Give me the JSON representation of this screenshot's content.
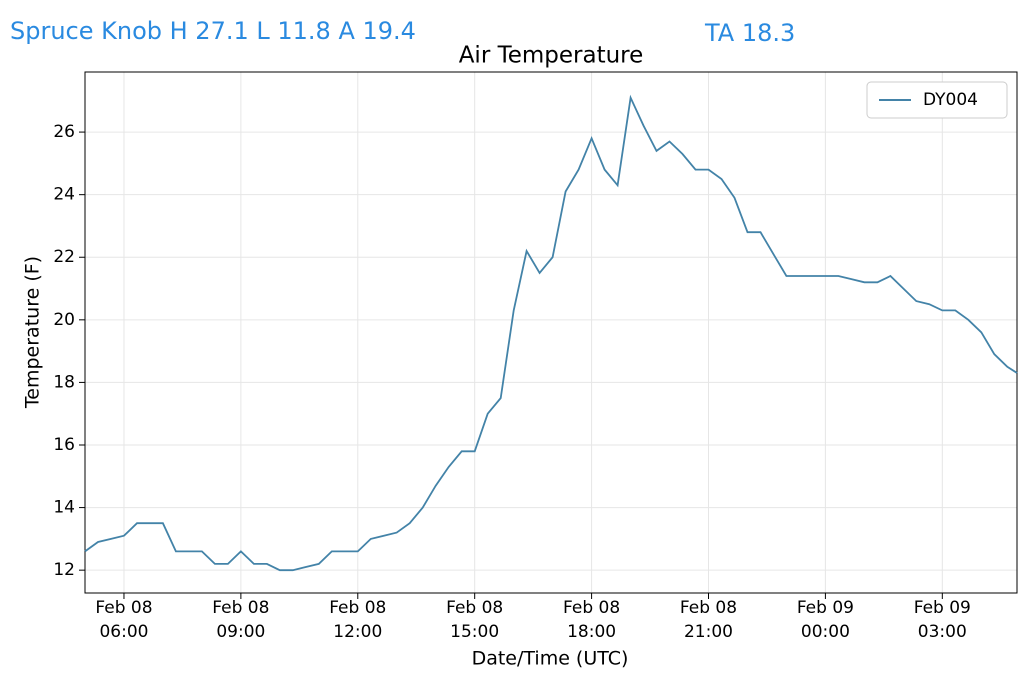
{
  "header": {
    "station": "Spruce Knob H 27.1 L 11.8 A 19.4",
    "ta": "TA 18.3"
  },
  "chart_data": {
    "type": "line",
    "title": "Air Temperature",
    "x_label": "Date/Time (UTC)",
    "y_label": "Temperature (F)",
    "x": [
      "Feb 08 05:00",
      "Feb 08 05:20",
      "Feb 08 05:40",
      "Feb 08 06:00",
      "Feb 08 06:20",
      "Feb 08 06:40",
      "Feb 08 07:00",
      "Feb 08 07:20",
      "Feb 08 07:40",
      "Feb 08 08:00",
      "Feb 08 08:20",
      "Feb 08 08:40",
      "Feb 08 09:00",
      "Feb 08 09:20",
      "Feb 08 09:40",
      "Feb 08 10:00",
      "Feb 08 10:20",
      "Feb 08 10:40",
      "Feb 08 11:00",
      "Feb 08 11:20",
      "Feb 08 11:40",
      "Feb 08 12:00",
      "Feb 08 12:20",
      "Feb 08 12:40",
      "Feb 08 13:00",
      "Feb 08 13:20",
      "Feb 08 13:40",
      "Feb 08 14:00",
      "Feb 08 14:20",
      "Feb 08 14:40",
      "Feb 08 15:00",
      "Feb 08 15:20",
      "Feb 08 15:40",
      "Feb 08 16:00",
      "Feb 08 16:20",
      "Feb 08 16:40",
      "Feb 08 17:00",
      "Feb 08 17:20",
      "Feb 08 17:40",
      "Feb 08 18:00",
      "Feb 08 18:20",
      "Feb 08 18:40",
      "Feb 08 19:00",
      "Feb 08 19:20",
      "Feb 08 19:40",
      "Feb 08 20:00",
      "Feb 08 20:20",
      "Feb 08 20:40",
      "Feb 08 21:00",
      "Feb 08 21:20",
      "Feb 08 21:40",
      "Feb 08 22:00",
      "Feb 08 22:20",
      "Feb 08 22:40",
      "Feb 08 23:00",
      "Feb 08 23:20",
      "Feb 08 23:40",
      "Feb 09 00:00",
      "Feb 09 00:20",
      "Feb 09 00:40",
      "Feb 09 01:00",
      "Feb 09 01:20",
      "Feb 09 01:40",
      "Feb 09 02:00",
      "Feb 09 02:20",
      "Feb 09 02:40",
      "Feb 09 03:00",
      "Feb 09 03:20",
      "Feb 09 03:40",
      "Feb 09 04:00",
      "Feb 09 04:20",
      "Feb 09 04:40",
      "Feb 09 04:55"
    ],
    "series": [
      {
        "name": "DY004",
        "color": "#4383a8",
        "values": [
          12.6,
          12.9,
          13.0,
          13.1,
          13.5,
          13.5,
          13.5,
          12.6,
          12.6,
          12.6,
          12.2,
          12.2,
          12.6,
          12.2,
          12.2,
          12.0,
          12.0,
          12.1,
          12.2,
          12.6,
          12.6,
          12.6,
          13.0,
          13.1,
          13.2,
          13.5,
          14.0,
          14.7,
          15.3,
          15.8,
          15.8,
          17.0,
          17.5,
          20.3,
          22.2,
          21.5,
          22.0,
          24.1,
          24.8,
          25.8,
          24.8,
          24.3,
          27.1,
          26.2,
          25.4,
          25.7,
          25.3,
          24.8,
          24.8,
          24.5,
          23.9,
          22.8,
          22.8,
          22.1,
          21.4,
          21.4,
          21.4,
          21.4,
          21.4,
          21.3,
          21.2,
          21.2,
          21.4,
          21.0,
          20.6,
          20.5,
          20.3,
          20.3,
          20.0,
          19.6,
          18.9,
          18.5,
          18.3
        ]
      }
    ],
    "xlim": [
      "Feb 08 05:00",
      "Feb 09 04:55"
    ],
    "xticks": [
      "Feb 08 06:00",
      "Feb 08 09:00",
      "Feb 08 12:00",
      "Feb 08 15:00",
      "Feb 08 18:00",
      "Feb 08 21:00",
      "Feb 09 00:00",
      "Feb 09 03:00"
    ],
    "ylim": [
      11.27,
      27.92
    ],
    "yticks": [
      12,
      14,
      16,
      18,
      20,
      22,
      24,
      26
    ],
    "grid": true,
    "legend": "upper right"
  }
}
